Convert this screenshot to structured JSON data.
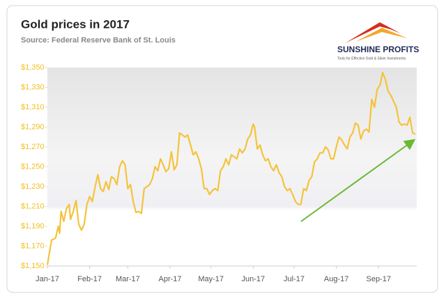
{
  "chart_data": {
    "type": "line",
    "title": "Gold prices in 2017",
    "subtitle": "Source: Federal Reserve Bank of St. Louis",
    "logo": {
      "name": "SUNSHINE PROFITS",
      "tagline": "Tools for Effective Gold & Silver Investments"
    },
    "color": "#f5c33b",
    "x": [
      0,
      3,
      6,
      8,
      9,
      10,
      12,
      14,
      16,
      17,
      19,
      21,
      23,
      25,
      27,
      29,
      31,
      33,
      35,
      37,
      39,
      41,
      43,
      45,
      47,
      49,
      51,
      53,
      55,
      57,
      59,
      61,
      63,
      65,
      67,
      69,
      71,
      73,
      75,
      77,
      79,
      81,
      83,
      85,
      87,
      89,
      91,
      93,
      95,
      97,
      99,
      101,
      103,
      105,
      107,
      109,
      111,
      113,
      115,
      117,
      119,
      121,
      123,
      125,
      127,
      129,
      131,
      133,
      135,
      137,
      139,
      141,
      143,
      145,
      147,
      149,
      151,
      152,
      154,
      156,
      158,
      160,
      162,
      164,
      166,
      168,
      170,
      172,
      174,
      176,
      178,
      180,
      182,
      184,
      186,
      188,
      190,
      192,
      194,
      196,
      198,
      200,
      202,
      204,
      206,
      208,
      210,
      212,
      214,
      216,
      218,
      220,
      222,
      224,
      226,
      228,
      230,
      232,
      234,
      236,
      238,
      240,
      242,
      244,
      246,
      248,
      250,
      252,
      254,
      256,
      258,
      260,
      262,
      264,
      266,
      268,
      270
    ],
    "values": [
      1151,
      1176,
      1178,
      1190,
      1183,
      1205,
      1195,
      1208,
      1212,
      1197,
      1205,
      1216,
      1192,
      1186,
      1192,
      1212,
      1220,
      1215,
      1230,
      1242,
      1228,
      1225,
      1235,
      1227,
      1240,
      1238,
      1232,
      1250,
      1256,
      1252,
      1228,
      1232,
      1215,
      1204,
      1205,
      1203,
      1228,
      1230,
      1232,
      1238,
      1250,
      1246,
      1258,
      1252,
      1245,
      1248,
      1265,
      1247,
      1252,
      1284,
      1282,
      1280,
      1282,
      1272,
      1262,
      1265,
      1258,
      1248,
      1228,
      1228,
      1222,
      1226,
      1228,
      1226,
      1246,
      1250,
      1258,
      1252,
      1262,
      1260,
      1258,
      1268,
      1264,
      1268,
      1278,
      1282,
      1293,
      1290,
      1268,
      1272,
      1262,
      1256,
      1258,
      1250,
      1246,
      1252,
      1244,
      1240,
      1230,
      1226,
      1228,
      1222,
      1215,
      1212,
      1212,
      1228,
      1226,
      1236,
      1240,
      1255,
      1258,
      1264,
      1264,
      1270,
      1267,
      1258,
      1258,
      1270,
      1280,
      1277,
      1272,
      1268,
      1280,
      1284,
      1294,
      1292,
      1278,
      1286,
      1288,
      1285,
      1318,
      1310,
      1328,
      1332,
      1345,
      1338,
      1326,
      1322,
      1316,
      1310,
      1295,
      1292,
      1293,
      1292,
      1300,
      1284,
      1283
    ],
    "xlim": [
      0,
      271
    ],
    "xticks": [
      {
        "value": 0,
        "label": "Jan-17"
      },
      {
        "value": 31,
        "label": "Feb-17"
      },
      {
        "value": 59,
        "label": "Mar-17"
      },
      {
        "value": 90,
        "label": "Apr-17"
      },
      {
        "value": 120,
        "label": "May-17"
      },
      {
        "value": 151,
        "label": "Jun-17"
      },
      {
        "value": 181,
        "label": "Jul-17"
      },
      {
        "value": 212,
        "label": "Aug-17"
      },
      {
        "value": 243,
        "label": "Sep-17"
      }
    ],
    "ylim": [
      1150,
      1350
    ],
    "yticks": [
      {
        "value": 1150,
        "label": "$1,150"
      },
      {
        "value": 1170,
        "label": "$1,170"
      },
      {
        "value": 1190,
        "label": "$1,190"
      },
      {
        "value": 1210,
        "label": "$1,210"
      },
      {
        "value": 1230,
        "label": "$1,230"
      },
      {
        "value": 1250,
        "label": "$1,250"
      },
      {
        "value": 1270,
        "label": "$1,270"
      },
      {
        "value": 1290,
        "label": "$1,290"
      },
      {
        "value": 1310,
        "label": "$1,310"
      },
      {
        "value": 1330,
        "label": "$1,330"
      },
      {
        "value": 1350,
        "label": "$1,350"
      }
    ]
  }
}
